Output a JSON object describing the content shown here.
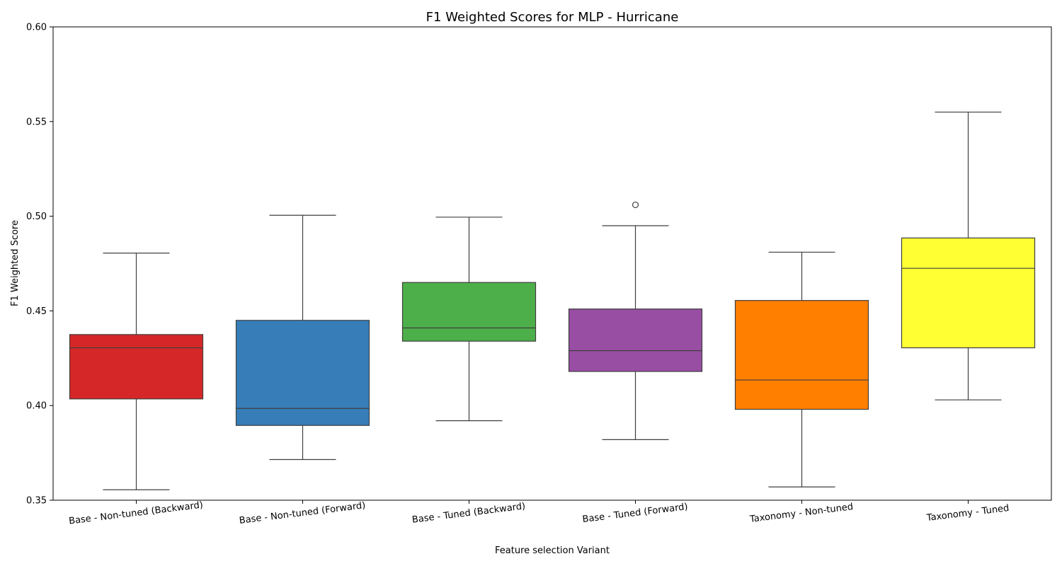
{
  "chart_data": {
    "type": "box",
    "title": "F1 Weighted Scores for MLP - Hurricane",
    "xlabel": "Feature selection Variant",
    "ylabel": "F1 Weighted Score",
    "ylim": [
      0.35,
      0.6
    ],
    "yticks": [
      "0.35",
      "0.40",
      "0.45",
      "0.50",
      "0.55",
      "0.60"
    ],
    "grid": false,
    "legend": "none",
    "categories": [
      "Base - Non-tuned (Backward)",
      "Base - Non-tuned (Forward)",
      "Base - Tuned (Backward)",
      "Base - Tuned (Forward)",
      "Taxonomy - Non-tuned",
      "Taxonomy - Tuned"
    ],
    "boxes": [
      {
        "color": "#d62728",
        "whisker_low": 0.3555,
        "q1": 0.4035,
        "median": 0.4305,
        "q3": 0.4375,
        "whisker_high": 0.4805,
        "outliers": []
      },
      {
        "color": "#377eb8",
        "whisker_low": 0.3715,
        "q1": 0.3895,
        "median": 0.3985,
        "q3": 0.445,
        "whisker_high": 0.5005,
        "outliers": []
      },
      {
        "color": "#4daf4a",
        "whisker_low": 0.392,
        "q1": 0.434,
        "median": 0.441,
        "q3": 0.465,
        "whisker_high": 0.4995,
        "outliers": []
      },
      {
        "color": "#984ea3",
        "whisker_low": 0.382,
        "q1": 0.418,
        "median": 0.429,
        "q3": 0.451,
        "whisker_high": 0.495,
        "outliers": [
          0.506
        ]
      },
      {
        "color": "#ff7f00",
        "whisker_low": 0.357,
        "q1": 0.398,
        "median": 0.4135,
        "q3": 0.4555,
        "whisker_high": 0.481,
        "outliers": []
      },
      {
        "color": "#ffff33",
        "whisker_low": 0.403,
        "q1": 0.4305,
        "median": 0.4725,
        "q3": 0.4885,
        "whisker_high": 0.555,
        "outliers": []
      }
    ]
  }
}
